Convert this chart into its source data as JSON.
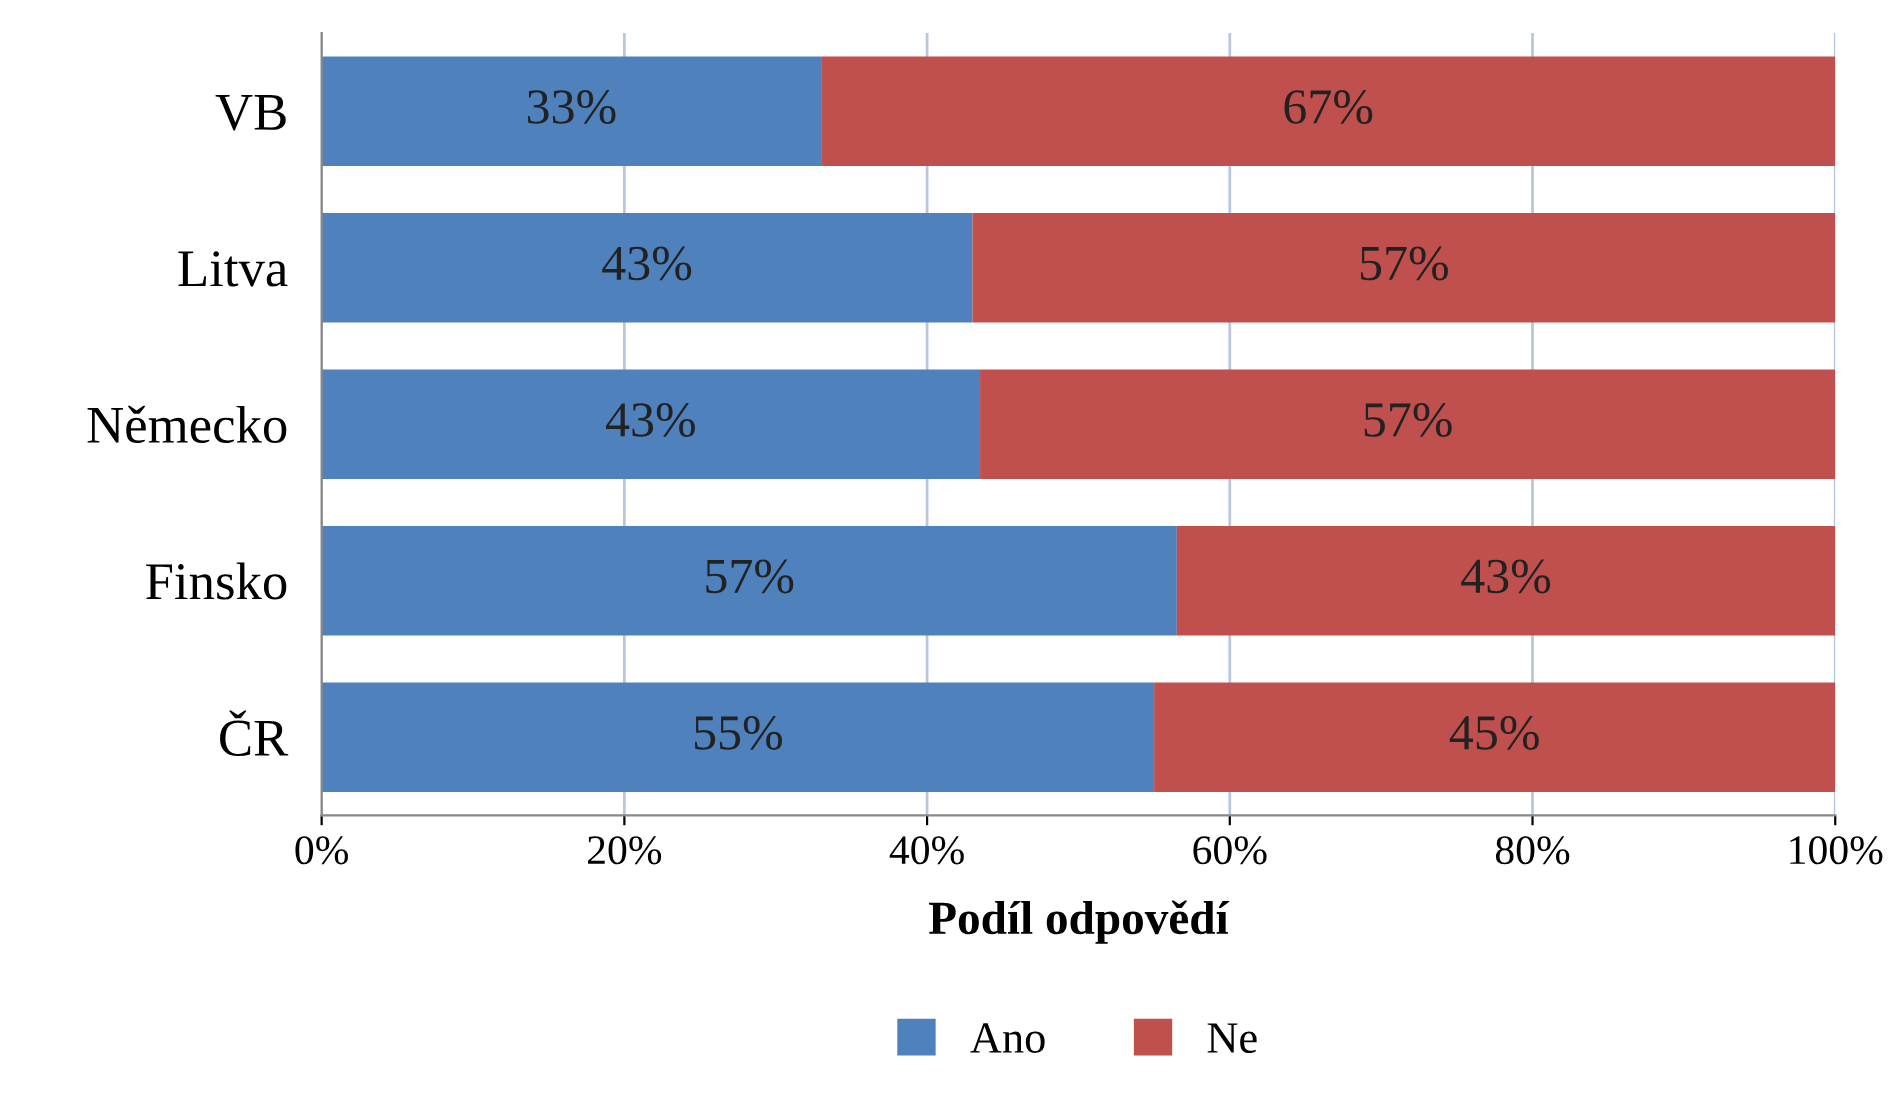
{
  "chart_data": {
    "type": "bar",
    "orientation": "horizontal",
    "stacked": true,
    "xlabel": "Podíl odpovědí",
    "categories": [
      "VB",
      "Litva",
      "Německo",
      "Finsko",
      "ČR"
    ],
    "series": [
      {
        "name": "Ano",
        "color": "#4f81bd",
        "values": [
          33,
          43,
          43.5,
          56.5,
          55
        ],
        "value_labels": [
          "33%",
          "43%",
          "43%",
          "57%",
          "55%"
        ]
      },
      {
        "name": "Ne",
        "color": "#c0504d",
        "values": [
          67,
          57,
          56.5,
          43.5,
          45
        ],
        "value_labels": [
          "67%",
          "57%",
          "57%",
          "43%",
          "45%"
        ]
      }
    ],
    "xlim": [
      0,
      100
    ],
    "xticks": [
      {
        "value": 0,
        "label": "0%"
      },
      {
        "value": 20,
        "label": "20%"
      },
      {
        "value": 40,
        "label": "40%"
      },
      {
        "value": 60,
        "label": "60%"
      },
      {
        "value": 80,
        "label": "80%"
      },
      {
        "value": 100,
        "label": "100%"
      }
    ],
    "grid": "x",
    "legend": "bottom"
  }
}
